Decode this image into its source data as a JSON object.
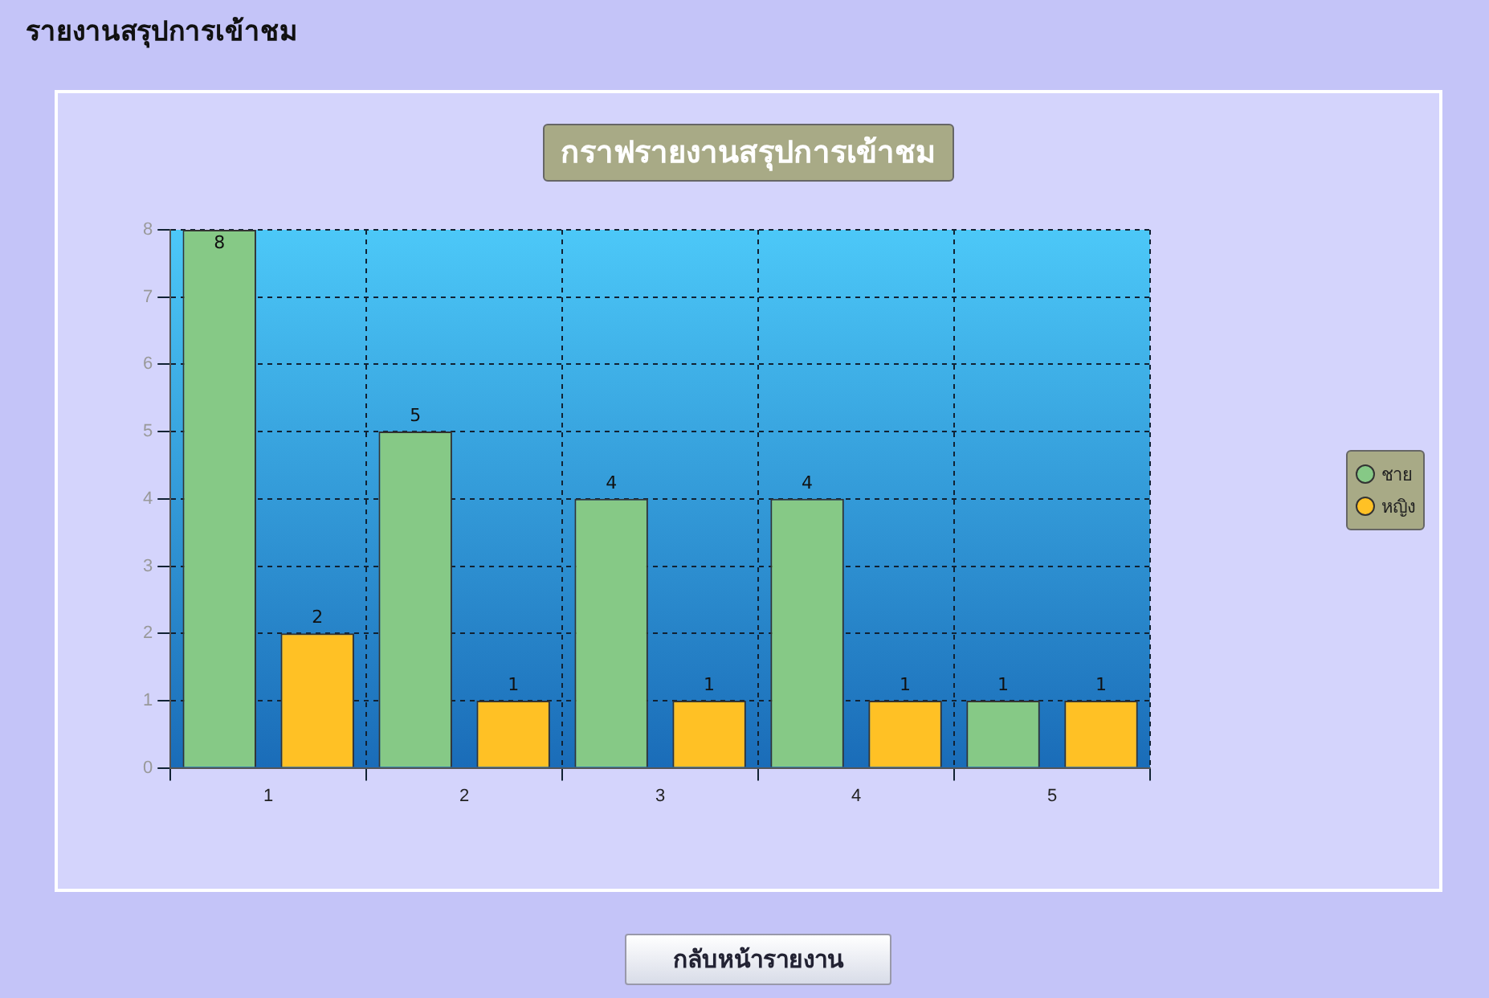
{
  "chart_data": {
    "type": "bar",
    "title": "กราฟรายงานสรุปการเข้าชม",
    "categories": [
      "1",
      "2",
      "3",
      "4",
      "5"
    ],
    "series": [
      {
        "name": "ชาย",
        "color": "#86c986",
        "values": [
          8,
          5,
          4,
          4,
          1
        ]
      },
      {
        "name": "หญิง",
        "color": "#ffc125",
        "values": [
          2,
          1,
          1,
          1,
          1
        ]
      }
    ],
    "ylim": [
      0,
      8
    ],
    "yticks": [
      0,
      1,
      2,
      3,
      4,
      5,
      6,
      7,
      8
    ],
    "grid": true,
    "legend": "right",
    "data_labels": true,
    "annotations": [
      "รายงานสรุปการเข้าชม",
      "กลับหน้ารายงาน"
    ]
  }
}
